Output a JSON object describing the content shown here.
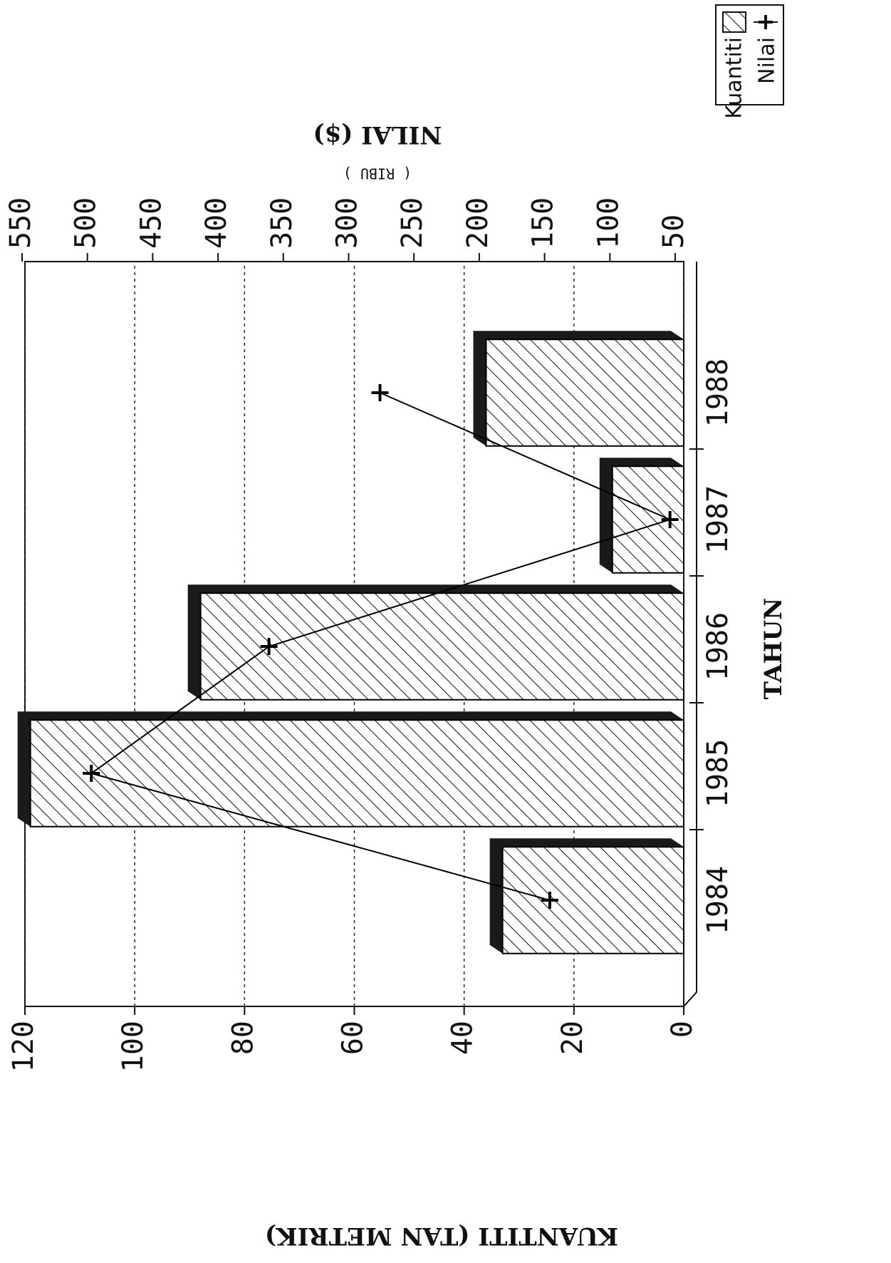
{
  "chart_data": {
    "type": "bar",
    "categories": [
      "1984",
      "1985",
      "1986",
      "1987",
      "1988"
    ],
    "series": [
      {
        "name": "Kuantiti",
        "color": "#000000",
        "values": [
          33,
          119,
          88,
          13,
          36
        ]
      },
      {
        "name": "Nilai",
        "color": "#000000",
        "axis": "y2",
        "values": [
          146,
          497,
          361,
          54,
          276
        ]
      }
    ],
    "xlabel": "TAHUN",
    "ylabel": "KUANTITI (TAN METRIK)",
    "y2label": "NILAI ($)",
    "y2sublabel": "( RIBU )",
    "ylim": [
      0,
      120
    ],
    "yticks": [
      0,
      20,
      40,
      60,
      80,
      100,
      120
    ],
    "y2lim": [
      50,
      550
    ],
    "y2ticks": [
      50,
      100,
      150,
      200,
      250,
      300,
      350,
      400,
      450,
      500,
      550
    ],
    "grid": true,
    "legend": "upper right"
  }
}
